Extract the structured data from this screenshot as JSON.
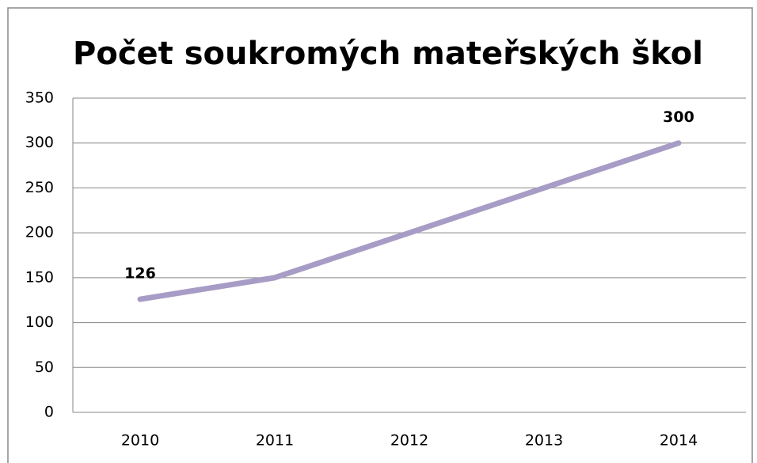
{
  "chart_data": {
    "type": "line",
    "title": "Počet soukromých mateřských škol",
    "categories": [
      "2010",
      "2011",
      "2012",
      "2013",
      "2014"
    ],
    "series": [
      {
        "name": null,
        "color": "#a79cc5",
        "values": [
          126,
          150,
          200,
          250,
          300
        ]
      }
    ],
    "value_labels": [
      "126",
      null,
      null,
      null,
      "300"
    ],
    "ylim": [
      0,
      350
    ],
    "yticks": [
      0,
      50,
      100,
      150,
      200,
      250,
      300,
      350
    ],
    "grid": true
  }
}
